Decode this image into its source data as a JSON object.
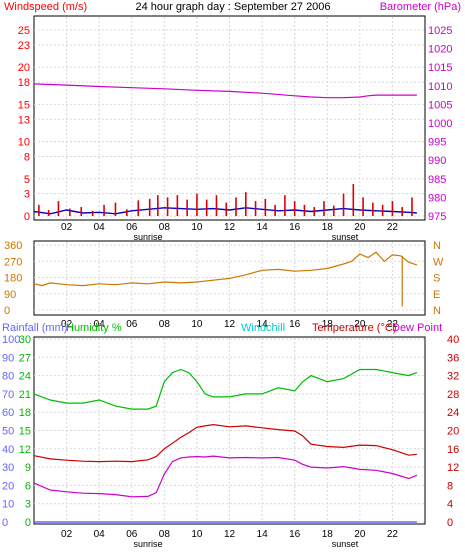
{
  "chart_data": [
    {
      "type": "line",
      "title": "24 hour graph day : September 27 2006",
      "left_axis_label": "Windspeed (m/s)",
      "right_axis_label": "Barometer (hPa)",
      "left_ticks": [
        0,
        3,
        5,
        8,
        10,
        13,
        15,
        18,
        20,
        23,
        25
      ],
      "left_range": [
        0,
        25
      ],
      "right_ticks": [
        975,
        980,
        985,
        990,
        995,
        1000,
        1005,
        1010,
        1015,
        1020,
        1025
      ],
      "right_range": [
        975,
        1025
      ],
      "x_ticks": [
        "02",
        "04",
        "06",
        "08",
        "10",
        "12",
        "14",
        "16",
        "18",
        "20",
        "22"
      ],
      "sunrise_label": "sunrise",
      "sunset_label": "sunset",
      "grid": true,
      "colors": {
        "left_axis": "#ff0000",
        "right_axis": "#cc00cc",
        "gust": "#dd0000",
        "wind": "#0000cc",
        "barometer": "#cc00cc"
      },
      "series": [
        {
          "key": "barometer",
          "axis": "right",
          "x": [
            0,
            2,
            4,
            6,
            8,
            10,
            12,
            14,
            16,
            17,
            18,
            19,
            20,
            20.5,
            21,
            22,
            23.5
          ],
          "values": [
            1010.5,
            1010.2,
            1009.8,
            1009.5,
            1009.2,
            1008.8,
            1008.5,
            1008,
            1007.3,
            1007,
            1006.8,
            1006.8,
            1007,
            1007.3,
            1007.5,
            1007.5,
            1007.5
          ]
        },
        {
          "key": "wind",
          "axis": "left",
          "x": [
            0,
            1,
            2,
            3,
            4,
            5,
            6,
            7,
            8,
            9,
            10,
            11,
            12,
            13,
            14,
            15,
            16,
            17,
            18,
            19,
            20,
            21,
            22,
            23,
            23.5
          ],
          "values": [
            0.6,
            0.3,
            0.8,
            0.4,
            0.5,
            0.3,
            0.7,
            0.9,
            1.1,
            1.0,
            0.9,
            1.0,
            0.8,
            1.1,
            0.9,
            0.7,
            0.8,
            0.6,
            0.8,
            1.0,
            0.8,
            0.7,
            0.6,
            0.5,
            0.4
          ]
        },
        {
          "key": "gust",
          "axis": "left",
          "x": [
            0.3,
            0.9,
            1.5,
            2.2,
            2.9,
            3.6,
            4.3,
            5.0,
            5.7,
            6.4,
            7.1,
            7.6,
            8.2,
            8.8,
            9.4,
            10.0,
            10.6,
            11.2,
            11.8,
            12.4,
            13.0,
            13.6,
            14.2,
            14.8,
            15.4,
            16.0,
            16.6,
            17.2,
            17.8,
            18.4,
            19.0,
            19.6,
            20.2,
            20.8,
            21.4,
            22.0,
            22.6,
            23.2
          ],
          "values": [
            1.5,
            0.8,
            2,
            1,
            1.2,
            0.7,
            1.5,
            1.8,
            0.9,
            2.1,
            2.3,
            2.8,
            2.5,
            2.8,
            2.2,
            3.0,
            2.2,
            2.8,
            1.8,
            2.5,
            3.2,
            2.0,
            2.3,
            1.5,
            2.8,
            2.0,
            1.5,
            1.2,
            2.0,
            1.4,
            3.0,
            4.3,
            2.5,
            1.8,
            1.5,
            2.0,
            1.2,
            2.5
          ]
        }
      ]
    },
    {
      "type": "line",
      "right_axis_labels": [
        "N",
        "W",
        "S",
        "E",
        "N"
      ],
      "left_ticks": [
        0,
        90,
        180,
        270,
        360
      ],
      "left_range": [
        0,
        360
      ],
      "x_ticks": [
        "02",
        "04",
        "06",
        "08",
        "10",
        "12",
        "14",
        "16",
        "18",
        "20",
        "22"
      ],
      "colors": {
        "direction": "#cc7700"
      },
      "series": [
        {
          "key": "direction",
          "axis": "left",
          "x": [
            0,
            0.5,
            1,
            2,
            3,
            4,
            5,
            6,
            7,
            8,
            9,
            10,
            11,
            12,
            13,
            14,
            15,
            16,
            17,
            18,
            19,
            19.5,
            20,
            20.5,
            21,
            21.5,
            22,
            22.5,
            23,
            23.5
          ],
          "values": [
            145,
            135,
            150,
            140,
            135,
            145,
            140,
            150,
            145,
            155,
            150,
            155,
            165,
            175,
            195,
            220,
            225,
            215,
            220,
            230,
            255,
            270,
            310,
            290,
            320,
            270,
            305,
            300,
            265,
            250
          ]
        }
      ]
    },
    {
      "type": "line",
      "axis_labels": {
        "rainfall": "Rainfall (mm)",
        "humidity": "Humidity %",
        "windchill": "Windchill",
        "temperature": "Temperature (°C)",
        "dewpoint": "Dew Point"
      },
      "rain_ticks": [
        0,
        10,
        20,
        30,
        40,
        50,
        60,
        70,
        80,
        90,
        100
      ],
      "humidity_ticks": [
        0,
        3,
        6,
        9,
        12,
        15,
        18,
        21,
        24,
        27,
        30
      ],
      "temp_ticks": [
        0,
        4,
        8,
        12,
        16,
        20,
        24,
        28,
        32,
        36,
        40
      ],
      "temp_range": [
        0,
        40
      ],
      "x_ticks": [
        "02",
        "04",
        "06",
        "08",
        "10",
        "12",
        "14",
        "16",
        "18",
        "20",
        "22"
      ],
      "sunrise_label": "sunrise",
      "sunset_label": "sunset",
      "colors": {
        "rainfall": "#6666ff",
        "humidity": "#00bb00",
        "windchill": "#00cccc",
        "temperature": "#cc0000",
        "dewpoint": "#cc00cc"
      },
      "series": [
        {
          "key": "humidity",
          "axis": "humidity",
          "x": [
            0,
            1,
            2,
            3,
            4,
            5,
            6,
            7,
            7.5,
            8,
            8.5,
            9,
            9.5,
            10,
            10.5,
            11,
            12,
            13,
            14,
            15,
            16,
            16.5,
            17,
            18,
            19,
            20,
            21,
            22,
            23,
            23.5
          ],
          "values": [
            21,
            20,
            19.5,
            19.5,
            20,
            19,
            18.5,
            18.5,
            19,
            23,
            24.5,
            25,
            24.5,
            23,
            21,
            20.5,
            20.5,
            21,
            21,
            22,
            21.5,
            23,
            24,
            23,
            23.5,
            25,
            25,
            24.5,
            24,
            24.5
          ]
        },
        {
          "key": "temperature",
          "axis": "temp",
          "x": [
            0,
            1,
            2,
            3,
            4,
            5,
            6,
            7,
            7.5,
            8,
            8.5,
            9,
            9.5,
            10,
            10.5,
            11,
            12,
            13,
            14,
            15,
            16,
            16.5,
            17,
            18,
            19,
            20,
            21,
            22,
            23,
            23.5
          ],
          "values": [
            14.5,
            13.8,
            13.5,
            13.3,
            13.2,
            13.3,
            13.2,
            13.6,
            14.3,
            16.0,
            17.2,
            18.5,
            19.5,
            20.7,
            21.0,
            21.3,
            20.8,
            21.0,
            20.6,
            20.2,
            19.9,
            18.8,
            17.0,
            16.5,
            16.3,
            16.8,
            16.7,
            15.8,
            14.6,
            14.8
          ]
        },
        {
          "key": "dewpoint",
          "axis": "temp",
          "x": [
            0,
            1,
            2,
            3,
            4,
            5,
            6,
            7,
            7.5,
            8,
            8.5,
            9,
            9.5,
            10,
            10.5,
            11,
            12,
            13,
            14,
            15,
            16,
            16.5,
            17,
            18,
            19,
            20,
            21,
            22,
            23,
            23.5
          ],
          "values": [
            8.5,
            7.0,
            6.6,
            6.3,
            6.2,
            6.0,
            5.5,
            5.6,
            6.4,
            10.5,
            13.2,
            14.0,
            14.2,
            14.3,
            14.2,
            14.4,
            14.0,
            14.1,
            14.0,
            14.1,
            13.5,
            12.6,
            12.0,
            11.8,
            12.1,
            11.5,
            11.3,
            10.6,
            9.5,
            10.2
          ]
        },
        {
          "key": "rainfall",
          "axis": "rain",
          "x": [
            0,
            23.5
          ],
          "values": [
            0,
            0
          ]
        }
      ]
    }
  ]
}
